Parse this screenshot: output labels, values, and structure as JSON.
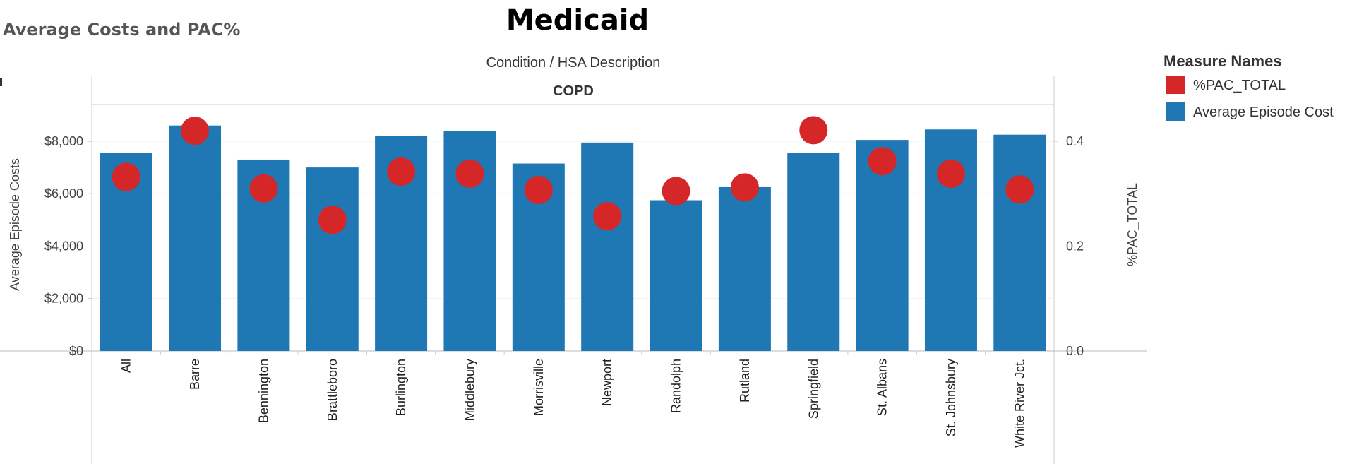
{
  "page_title": "Average Costs and PAC%",
  "chart_data": {
    "type": "bar",
    "title": "Medicaid",
    "header": "Condition  /  HSA Description",
    "panel": "COPD",
    "categories": [
      "All",
      "Barre",
      "Bennington",
      "Brattleboro",
      "Burlington",
      "Middlebury",
      "Morrisville",
      "Newport",
      "Randolph",
      "Rutland",
      "Springfield",
      "St. Albans",
      "St. Johnsbury",
      "White River Jct."
    ],
    "series": [
      {
        "name": "Average Episode Cost",
        "mark": "bar",
        "axis": "left",
        "color": "#1f77b4",
        "values": [
          7550,
          8600,
          7300,
          7000,
          8200,
          8400,
          7150,
          7950,
          5750,
          6250,
          7550,
          8050,
          8450,
          8250
        ]
      },
      {
        "name": "%PAC_TOTAL",
        "mark": "circle",
        "axis": "right",
        "color": "#d62728",
        "values": [
          0.332,
          0.42,
          0.31,
          0.25,
          0.342,
          0.338,
          0.307,
          0.257,
          0.305,
          0.312,
          0.421,
          0.362,
          0.338,
          0.308
        ]
      }
    ],
    "y_left": {
      "label": "Average Episode Costs",
      "lim": [
        0,
        9400
      ],
      "ticks": [
        0,
        2000,
        4000,
        6000,
        8000
      ],
      "tick_labels": [
        "$0",
        "$2,000",
        "$4,000",
        "$6,000",
        "$8,000"
      ]
    },
    "y_right": {
      "label": "%PAC_TOTAL",
      "lim": [
        0,
        0.47
      ],
      "ticks": [
        0,
        0.2,
        0.4
      ],
      "tick_labels": [
        "0.0",
        "0.2",
        "0.4"
      ]
    },
    "legend": {
      "title": "Measure Names",
      "placement": "top-right",
      "items": [
        {
          "label": "%PAC_TOTAL",
          "color": "#d62728"
        },
        {
          "label": "Average Episode Cost",
          "color": "#1f77b4"
        }
      ]
    },
    "grid": "horizontal"
  }
}
